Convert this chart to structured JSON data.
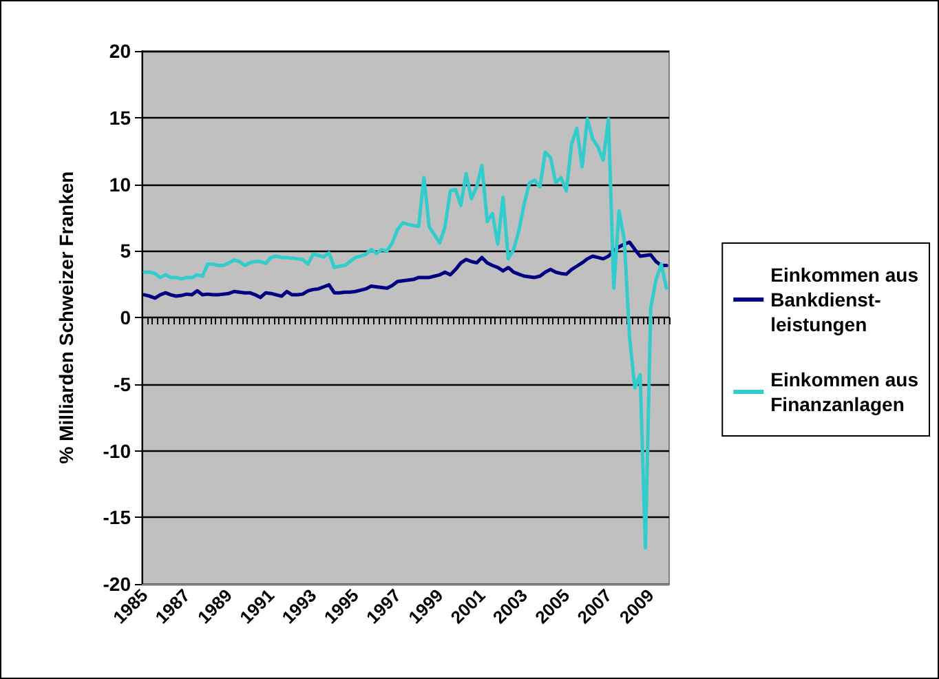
{
  "chart_data": {
    "type": "line",
    "ylabel": "% Milliarden Schweizer Franken",
    "categories": [
      "1985",
      null,
      null,
      null,
      null,
      null,
      null,
      null,
      "1987",
      null,
      null,
      null,
      null,
      null,
      null,
      null,
      "1989",
      null,
      null,
      null,
      null,
      null,
      null,
      null,
      "1991",
      null,
      null,
      null,
      null,
      null,
      null,
      null,
      "1993",
      null,
      null,
      null,
      null,
      null,
      null,
      null,
      "1995",
      null,
      null,
      null,
      null,
      null,
      null,
      null,
      "1997",
      null,
      null,
      null,
      null,
      null,
      null,
      null,
      "1999",
      null,
      null,
      null,
      null,
      null,
      null,
      null,
      "2001",
      null,
      null,
      null,
      null,
      null,
      null,
      null,
      "2003",
      null,
      null,
      null,
      null,
      null,
      null,
      null,
      "2005",
      null,
      null,
      null,
      null,
      null,
      null,
      null,
      "2007",
      null,
      null,
      null,
      null,
      null,
      null,
      null,
      "2009",
      null,
      null,
      null
    ],
    "series": [
      {
        "name": "Einkommen aus Bankdienst-leistungen",
        "color": "#000080",
        "values": [
          1.7,
          1.6,
          1.45,
          1.7,
          1.85,
          1.7,
          1.6,
          1.65,
          1.75,
          1.7,
          2.0,
          1.7,
          1.75,
          1.7,
          1.7,
          1.75,
          1.8,
          1.95,
          1.9,
          1.85,
          1.85,
          1.7,
          1.5,
          1.85,
          1.8,
          1.7,
          1.6,
          1.95,
          1.7,
          1.7,
          1.75,
          2.0,
          2.1,
          2.15,
          2.3,
          2.45,
          1.85,
          1.85,
          1.9,
          1.9,
          1.95,
          2.05,
          2.15,
          2.35,
          2.3,
          2.25,
          2.2,
          2.4,
          2.7,
          2.75,
          2.8,
          2.85,
          3.0,
          3.0,
          3.0,
          3.1,
          3.2,
          3.4,
          3.2,
          3.6,
          4.1,
          4.35,
          4.2,
          4.1,
          4.5,
          4.1,
          3.9,
          3.75,
          3.5,
          3.75,
          3.4,
          3.25,
          3.1,
          3.05,
          3.0,
          3.1,
          3.4,
          3.6,
          3.4,
          3.3,
          3.25,
          3.6,
          3.85,
          4.1,
          4.4,
          4.6,
          4.5,
          4.4,
          4.6,
          5.0,
          5.3,
          5.5,
          5.65,
          5.1,
          4.6,
          4.65,
          4.7,
          4.2,
          3.9,
          3.9
        ]
      },
      {
        "name": "Einkommen aus Finanzanlagen",
        "color": "#33cccc",
        "values": [
          3.4,
          3.4,
          3.3,
          3.0,
          3.2,
          3.0,
          3.0,
          2.9,
          3.0,
          3.0,
          3.2,
          3.1,
          4.0,
          4.0,
          3.9,
          3.9,
          4.1,
          4.3,
          4.2,
          3.9,
          4.1,
          4.2,
          4.2,
          4.05,
          4.5,
          4.6,
          4.5,
          4.5,
          4.45,
          4.4,
          4.35,
          4.0,
          4.75,
          4.65,
          4.55,
          4.85,
          3.75,
          3.85,
          3.9,
          4.2,
          4.5,
          4.6,
          4.75,
          5.1,
          4.8,
          5.1,
          5.0,
          5.6,
          6.6,
          7.1,
          7.0,
          6.9,
          6.85,
          10.5,
          6.8,
          6.2,
          5.6,
          6.8,
          9.5,
          9.6,
          8.4,
          10.8,
          8.9,
          9.8,
          11.4,
          7.2,
          7.8,
          5.5,
          9.0,
          4.4,
          5.1,
          6.5,
          8.5,
          10.1,
          10.3,
          9.8,
          12.4,
          12.0,
          10.1,
          10.5,
          9.5,
          13.0,
          14.2,
          11.3,
          14.9,
          13.4,
          12.8,
          11.8,
          14.9,
          2.2,
          8.0,
          5.8,
          -1.5,
          -5.3,
          -4.3,
          -17.3,
          0.7,
          2.8,
          4.0,
          2.2
        ]
      }
    ],
    "ylim": [
      -20,
      20
    ],
    "yticks": [
      -20,
      -15,
      -10,
      -5,
      0,
      5,
      10,
      15,
      20
    ],
    "grid": "y",
    "legend": "right",
    "marker": "none",
    "line_style": "solid"
  }
}
